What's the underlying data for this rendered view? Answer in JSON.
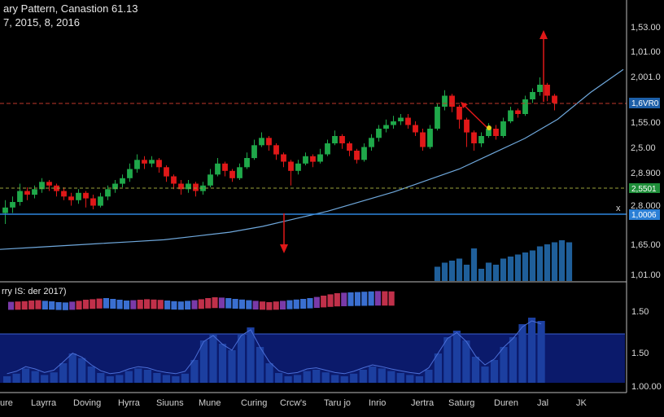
{
  "title": "ary Pattern, Canastion 61.13",
  "subtitle": "7, 2015, 8, 2016",
  "indicator_label": "rry IS: der 2017)",
  "colors": {
    "background": "#000000",
    "up": "#1fa84a",
    "down": "#e01818",
    "ma_line": "#6fa8dc",
    "resistance": "#c0392b",
    "support_green": "#9aa23a",
    "blue_level": "#2e86de",
    "volume": "#1f5f9a",
    "indicator_panel": "#0b1a6b",
    "indicator_area": "#1c3fa0"
  },
  "axis": {
    "y_ticks": [
      "1,53.00",
      "1,01.00",
      "2,001.0",
      "1,55.00",
      "2,5.00",
      "2,8.900",
      "2,8.000",
      "1,65.00",
      "1,01.00"
    ],
    "indicator_ticks": [
      "1.50",
      "1.50",
      "1.00.00"
    ],
    "x_ticks": [
      "ure",
      "Layrra",
      "Doving",
      "Hyrra",
      "Siuuns",
      "Mune",
      "Curing",
      "Crcw's",
      "Taru jo",
      "Inrio",
      "Jertra",
      "Saturg",
      "Duren",
      "Jal",
      "JK"
    ]
  },
  "badges": {
    "resistance": "1,6VR0",
    "support": "2,5501",
    "blue_level": "1,0006",
    "x_mark": "x"
  },
  "chart_data": {
    "type": "candlestick",
    "title": "ary Pattern, Canastion 61.13",
    "candles": [
      {
        "o": 0.26,
        "c": 0.29,
        "h": 0.33,
        "l": 0.2
      },
      {
        "o": 0.29,
        "c": 0.32,
        "h": 0.35,
        "l": 0.26
      },
      {
        "o": 0.32,
        "c": 0.38,
        "h": 0.42,
        "l": 0.3
      },
      {
        "o": 0.38,
        "c": 0.36,
        "h": 0.4,
        "l": 0.33
      },
      {
        "o": 0.36,
        "c": 0.39,
        "h": 0.41,
        "l": 0.34
      },
      {
        "o": 0.39,
        "c": 0.43,
        "h": 0.45,
        "l": 0.37
      },
      {
        "o": 0.43,
        "c": 0.41,
        "h": 0.44,
        "l": 0.38
      },
      {
        "o": 0.41,
        "c": 0.38,
        "h": 0.42,
        "l": 0.35
      },
      {
        "o": 0.38,
        "c": 0.35,
        "h": 0.4,
        "l": 0.33
      },
      {
        "o": 0.35,
        "c": 0.33,
        "h": 0.37,
        "l": 0.3
      },
      {
        "o": 0.33,
        "c": 0.37,
        "h": 0.39,
        "l": 0.31
      },
      {
        "o": 0.37,
        "c": 0.34,
        "h": 0.38,
        "l": 0.29
      },
      {
        "o": 0.34,
        "c": 0.3,
        "h": 0.36,
        "l": 0.28
      },
      {
        "o": 0.3,
        "c": 0.35,
        "h": 0.37,
        "l": 0.29
      },
      {
        "o": 0.35,
        "c": 0.39,
        "h": 0.41,
        "l": 0.33
      },
      {
        "o": 0.39,
        "c": 0.42,
        "h": 0.44,
        "l": 0.37
      },
      {
        "o": 0.42,
        "c": 0.45,
        "h": 0.47,
        "l": 0.4
      },
      {
        "o": 0.45,
        "c": 0.5,
        "h": 0.53,
        "l": 0.43
      },
      {
        "o": 0.5,
        "c": 0.55,
        "h": 0.58,
        "l": 0.48
      },
      {
        "o": 0.55,
        "c": 0.53,
        "h": 0.57,
        "l": 0.5
      },
      {
        "o": 0.53,
        "c": 0.55,
        "h": 0.57,
        "l": 0.51
      },
      {
        "o": 0.55,
        "c": 0.51,
        "h": 0.56,
        "l": 0.48
      },
      {
        "o": 0.51,
        "c": 0.46,
        "h": 0.52,
        "l": 0.43
      },
      {
        "o": 0.46,
        "c": 0.42,
        "h": 0.47,
        "l": 0.39
      },
      {
        "o": 0.42,
        "c": 0.39,
        "h": 0.44,
        "l": 0.36
      },
      {
        "o": 0.39,
        "c": 0.42,
        "h": 0.44,
        "l": 0.37
      },
      {
        "o": 0.42,
        "c": 0.38,
        "h": 0.43,
        "l": 0.35
      },
      {
        "o": 0.38,
        "c": 0.41,
        "h": 0.43,
        "l": 0.36
      },
      {
        "o": 0.41,
        "c": 0.47,
        "h": 0.5,
        "l": 0.4
      },
      {
        "o": 0.47,
        "c": 0.53,
        "h": 0.56,
        "l": 0.46
      },
      {
        "o": 0.53,
        "c": 0.49,
        "h": 0.54,
        "l": 0.46
      },
      {
        "o": 0.49,
        "c": 0.45,
        "h": 0.5,
        "l": 0.43
      },
      {
        "o": 0.45,
        "c": 0.51,
        "h": 0.53,
        "l": 0.44
      },
      {
        "o": 0.51,
        "c": 0.56,
        "h": 0.59,
        "l": 0.5
      },
      {
        "o": 0.56,
        "c": 0.63,
        "h": 0.66,
        "l": 0.55
      },
      {
        "o": 0.63,
        "c": 0.67,
        "h": 0.7,
        "l": 0.62
      },
      {
        "o": 0.67,
        "c": 0.63,
        "h": 0.68,
        "l": 0.6
      },
      {
        "o": 0.63,
        "c": 0.58,
        "h": 0.64,
        "l": 0.55
      },
      {
        "o": 0.58,
        "c": 0.54,
        "h": 0.59,
        "l": 0.51
      },
      {
        "o": 0.54,
        "c": 0.49,
        "h": 0.55,
        "l": 0.41
      },
      {
        "o": 0.49,
        "c": 0.53,
        "h": 0.55,
        "l": 0.47
      },
      {
        "o": 0.53,
        "c": 0.57,
        "h": 0.59,
        "l": 0.52
      },
      {
        "o": 0.57,
        "c": 0.54,
        "h": 0.58,
        "l": 0.51
      },
      {
        "o": 0.54,
        "c": 0.58,
        "h": 0.61,
        "l": 0.53
      },
      {
        "o": 0.58,
        "c": 0.64,
        "h": 0.66,
        "l": 0.57
      },
      {
        "o": 0.64,
        "c": 0.68,
        "h": 0.71,
        "l": 0.63
      },
      {
        "o": 0.68,
        "c": 0.64,
        "h": 0.69,
        "l": 0.61
      },
      {
        "o": 0.64,
        "c": 0.6,
        "h": 0.65,
        "l": 0.57
      },
      {
        "o": 0.6,
        "c": 0.55,
        "h": 0.61,
        "l": 0.53
      },
      {
        "o": 0.55,
        "c": 0.62,
        "h": 0.64,
        "l": 0.54
      },
      {
        "o": 0.62,
        "c": 0.67,
        "h": 0.69,
        "l": 0.6
      },
      {
        "o": 0.67,
        "c": 0.72,
        "h": 0.74,
        "l": 0.65
      },
      {
        "o": 0.72,
        "c": 0.74,
        "h": 0.77,
        "l": 0.7
      },
      {
        "o": 0.74,
        "c": 0.76,
        "h": 0.79,
        "l": 0.72
      },
      {
        "o": 0.76,
        "c": 0.78,
        "h": 0.8,
        "l": 0.74
      },
      {
        "o": 0.78,
        "c": 0.74,
        "h": 0.8,
        "l": 0.72
      },
      {
        "o": 0.74,
        "c": 0.7,
        "h": 0.76,
        "l": 0.68
      },
      {
        "o": 0.7,
        "c": 0.62,
        "h": 0.72,
        "l": 0.6
      },
      {
        "o": 0.62,
        "c": 0.72,
        "h": 0.74,
        "l": 0.61
      },
      {
        "o": 0.72,
        "c": 0.84,
        "h": 0.86,
        "l": 0.71
      },
      {
        "o": 0.84,
        "c": 0.9,
        "h": 0.93,
        "l": 0.82
      },
      {
        "o": 0.9,
        "c": 0.84,
        "h": 0.91,
        "l": 0.81
      },
      {
        "o": 0.84,
        "c": 0.77,
        "h": 0.85,
        "l": 0.72
      },
      {
        "o": 0.77,
        "c": 0.7,
        "h": 0.78,
        "l": 0.62
      },
      {
        "o": 0.7,
        "c": 0.64,
        "h": 0.71,
        "l": 0.6
      },
      {
        "o": 0.64,
        "c": 0.68,
        "h": 0.7,
        "l": 0.62
      },
      {
        "o": 0.68,
        "c": 0.72,
        "h": 0.75,
        "l": 0.67
      },
      {
        "o": 0.72,
        "c": 0.68,
        "h": 0.74,
        "l": 0.66
      },
      {
        "o": 0.68,
        "c": 0.76,
        "h": 0.78,
        "l": 0.67
      },
      {
        "o": 0.76,
        "c": 0.82,
        "h": 0.84,
        "l": 0.75
      },
      {
        "o": 0.82,
        "c": 0.8,
        "h": 0.83,
        "l": 0.78
      },
      {
        "o": 0.8,
        "c": 0.88,
        "h": 0.9,
        "l": 0.79
      },
      {
        "o": 0.88,
        "c": 0.92,
        "h": 0.94,
        "l": 0.86
      },
      {
        "o": 0.92,
        "c": 0.96,
        "h": 1.0,
        "l": 0.9
      },
      {
        "o": 0.96,
        "c": 0.9,
        "h": 0.97,
        "l": 0.87
      },
      {
        "o": 0.9,
        "c": 0.86,
        "h": 0.91,
        "l": 0.82
      }
    ],
    "moving_average": [
      0.08,
      0.09,
      0.1,
      0.11,
      0.12,
      0.13,
      0.15,
      0.17,
      0.2,
      0.24,
      0.28,
      0.33,
      0.38,
      0.44,
      0.5,
      0.58,
      0.66,
      0.76,
      0.9,
      1.02
    ],
    "volume": [
      0,
      0,
      0,
      0,
      0,
      0,
      0,
      0,
      0,
      0,
      0,
      0,
      0,
      0,
      0,
      0,
      0,
      0,
      0,
      0,
      0,
      0,
      0,
      0,
      0,
      0,
      0,
      0,
      0,
      0,
      0,
      0,
      0,
      0,
      0,
      0,
      0,
      0,
      0,
      0,
      0,
      0,
      0,
      0,
      0,
      0,
      0,
      0,
      0,
      0,
      0,
      0,
      0,
      0,
      0,
      0,
      0,
      0,
      0,
      0.35,
      0.45,
      0.5,
      0.55,
      0.4,
      0.8,
      0.3,
      0.45,
      0.4,
      0.55,
      0.6,
      0.65,
      0.7,
      0.75,
      0.85,
      0.9,
      0.95,
      1.0,
      0.95
    ],
    "indicator": [
      0.32,
      0.34,
      0.36,
      0.4,
      0.42,
      0.38,
      0.35,
      0.3,
      0.28,
      0.33,
      0.38,
      0.45,
      0.48,
      0.52,
      0.55,
      0.5,
      0.45,
      0.4,
      0.42,
      0.45,
      0.48,
      0.46,
      0.44,
      0.4,
      0.36,
      0.34,
      0.38,
      0.42,
      0.48,
      0.55,
      0.6,
      0.58,
      0.55,
      0.5,
      0.46,
      0.42,
      0.38,
      0.34,
      0.3,
      0.34,
      0.38,
      0.42,
      0.46,
      0.5,
      0.55,
      0.62,
      0.7,
      0.78,
      0.85,
      0.88,
      0.9,
      0.92,
      0.94,
      0.96,
      0.98,
      0.97,
      0.96
    ],
    "oscillator": [
      0.1,
      0.14,
      0.22,
      0.18,
      0.12,
      0.16,
      0.3,
      0.45,
      0.38,
      0.25,
      0.15,
      0.1,
      0.12,
      0.18,
      0.22,
      0.2,
      0.15,
      0.12,
      0.1,
      0.14,
      0.35,
      0.65,
      0.75,
      0.6,
      0.5,
      0.75,
      0.85,
      0.55,
      0.3,
      0.15,
      0.1,
      0.12,
      0.18,
      0.2,
      0.16,
      0.12,
      0.1,
      0.14,
      0.2,
      0.25,
      0.22,
      0.18,
      0.15,
      0.12,
      0.1,
      0.2,
      0.45,
      0.7,
      0.8,
      0.65,
      0.4,
      0.25,
      0.35,
      0.55,
      0.7,
      0.9,
      1.0,
      0.95
    ]
  }
}
